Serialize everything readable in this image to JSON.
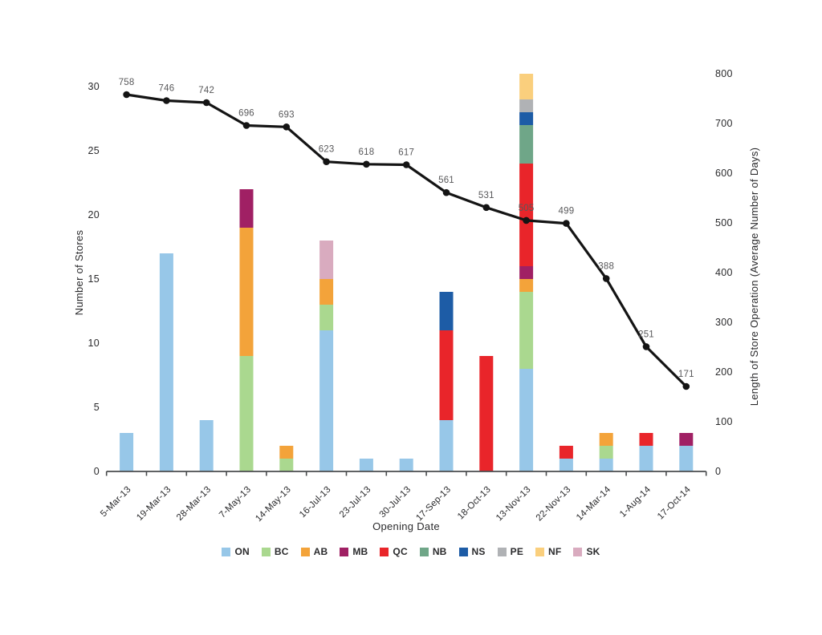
{
  "chart_data": {
    "type": "combo-stacked-bar-line",
    "x": {
      "title": "Opening Date",
      "categories": [
        "5-Mar-13",
        "19-Mar-13",
        "28-Mar-13",
        "7-May-13",
        "14-May-13",
        "16-Jul-13",
        "23-Jul-13",
        "30-Jul-13",
        "17-Sep-13",
        "18-Oct-13",
        "13-Nov-13",
        "22-Nov-13",
        "14-Mar-14",
        "1-Aug-14",
        "17-Oct-14"
      ]
    },
    "left_axis": {
      "title": "Number of Stores",
      "min": 0,
      "max": 31,
      "ticks": [
        0,
        5,
        10,
        15,
        20,
        25,
        30
      ]
    },
    "right_axis": {
      "title": "Length of Store Operation (Average Number of Days)",
      "min": 0,
      "max": 800,
      "ticks": [
        0,
        100,
        200,
        300,
        400,
        500,
        600,
        700,
        800
      ]
    },
    "bar_series": [
      {
        "name": "ON",
        "color": "#97C7E8",
        "values": [
          3,
          17,
          4,
          0,
          0,
          11,
          1,
          1,
          4,
          0,
          8,
          1,
          1,
          2,
          2
        ]
      },
      {
        "name": "BC",
        "color": "#AAD88F",
        "values": [
          0,
          0,
          0,
          9,
          1,
          2,
          0,
          0,
          0,
          0,
          6,
          0,
          1,
          0,
          0
        ]
      },
      {
        "name": "AB",
        "color": "#F3A33A",
        "values": [
          0,
          0,
          0,
          10,
          1,
          2,
          0,
          0,
          0,
          0,
          1,
          0,
          1,
          0,
          0
        ]
      },
      {
        "name": "MB",
        "color": "#A02064",
        "values": [
          0,
          0,
          0,
          3,
          0,
          0,
          0,
          0,
          0,
          0,
          1,
          0,
          0,
          0,
          1
        ]
      },
      {
        "name": "QC",
        "color": "#E9252A",
        "values": [
          0,
          0,
          0,
          0,
          0,
          0,
          0,
          0,
          7,
          9,
          8,
          1,
          0,
          1,
          0
        ]
      },
      {
        "name": "NB",
        "color": "#6FA688",
        "values": [
          0,
          0,
          0,
          0,
          0,
          0,
          0,
          0,
          0,
          0,
          3,
          0,
          0,
          0,
          0
        ]
      },
      {
        "name": "NS",
        "color": "#1D5CA6",
        "values": [
          0,
          0,
          0,
          0,
          0,
          0,
          0,
          0,
          3,
          0,
          1,
          0,
          0,
          0,
          0
        ]
      },
      {
        "name": "PE",
        "color": "#B0B2B5",
        "values": [
          0,
          0,
          0,
          0,
          0,
          0,
          0,
          0,
          0,
          0,
          1,
          0,
          0,
          0,
          0
        ]
      },
      {
        "name": "NF",
        "color": "#FACF7D",
        "values": [
          0,
          0,
          0,
          0,
          0,
          0,
          0,
          0,
          0,
          0,
          2,
          0,
          0,
          0,
          0
        ]
      },
      {
        "name": "SK",
        "color": "#D9ABBF",
        "values": [
          0,
          0,
          0,
          0,
          0,
          3,
          0,
          0,
          0,
          0,
          0,
          0,
          0,
          0,
          0
        ]
      }
    ],
    "line_series": {
      "name": "Length of Store Operation (Average Number of Days)",
      "color": "#141414",
      "values": [
        758,
        746,
        742,
        696,
        693,
        623,
        618,
        617,
        561,
        531,
        505,
        499,
        388,
        251,
        171
      ]
    },
    "colors": {
      "axis_line": "#4a4c4e",
      "tick_text": "#2a2a2c",
      "data_label_text": "#58585a"
    }
  }
}
